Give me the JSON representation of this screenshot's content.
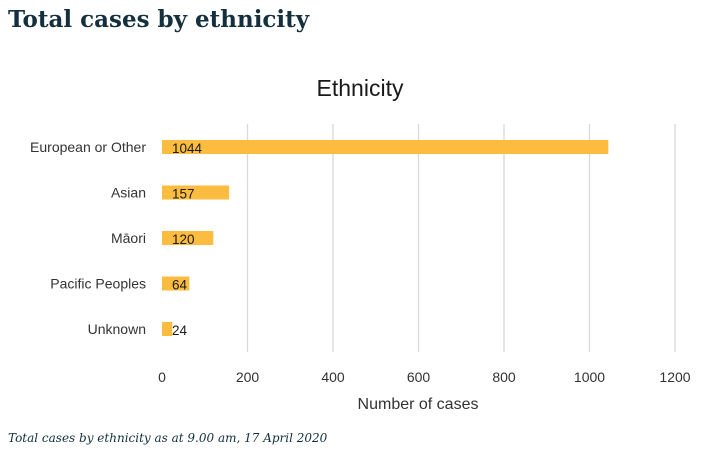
{
  "heading": "Total cases by ethnicity",
  "caption": "Total cases by ethnicity as at 9.00 am, 17 April 2020",
  "chart_data": {
    "type": "bar",
    "orientation": "horizontal",
    "title": "Ethnicity",
    "xlabel": "Number of cases",
    "ylabel": "",
    "categories": [
      "European or Other",
      "Asian",
      "Māori",
      "Pacific Peoples",
      "Unknown"
    ],
    "values": [
      1044,
      157,
      120,
      64,
      24
    ],
    "data_labels": [
      "1044",
      "157",
      "120",
      "64",
      "24"
    ],
    "xlim": [
      0,
      1200
    ],
    "xticks": [
      0,
      200,
      400,
      600,
      800,
      1000,
      1200
    ],
    "grid": "vertical",
    "legend": "none",
    "bar_color": "#fbbc3f",
    "grid_color": "#d9d9d9"
  }
}
